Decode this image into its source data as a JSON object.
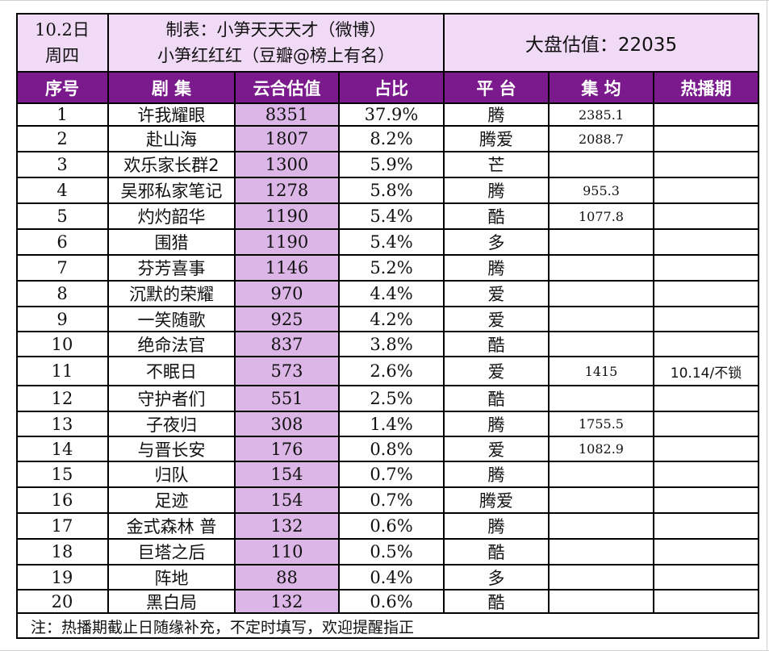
{
  "header": {
    "date": "10.2日",
    "weekday": "周四",
    "credit_line1": "制表：小笋天天天才（微博）",
    "credit_line2": "小笋红红红（豆瓣@榜上有名）",
    "market_estimate": "大盘估值：22035"
  },
  "columns": [
    "序号",
    "剧 集",
    "云合估值",
    "占比",
    "平 台",
    "集 均",
    "热播期"
  ],
  "rows": [
    {
      "rank": "1",
      "title": "许我耀眼",
      "estimate": "8351",
      "share": "37.9%",
      "platform": "腾",
      "per_episode": "2385.1",
      "hot_period": ""
    },
    {
      "rank": "2",
      "title": "赴山海",
      "estimate": "1807",
      "share": "8.2%",
      "platform": "腾爱",
      "per_episode": "2088.7",
      "hot_period": ""
    },
    {
      "rank": "3",
      "title": "欢乐家长群2",
      "estimate": "1300",
      "share": "5.9%",
      "platform": "芒",
      "per_episode": "",
      "hot_period": ""
    },
    {
      "rank": "4",
      "title": "吴邪私家笔记",
      "estimate": "1278",
      "share": "5.8%",
      "platform": "腾",
      "per_episode": "955.3",
      "hot_period": ""
    },
    {
      "rank": "5",
      "title": "灼灼韶华",
      "estimate": "1190",
      "share": "5.4%",
      "platform": "酷",
      "per_episode": "1077.8",
      "hot_period": ""
    },
    {
      "rank": "6",
      "title": "围猎",
      "estimate": "1190",
      "share": "5.4%",
      "platform": "多",
      "per_episode": "",
      "hot_period": ""
    },
    {
      "rank": "7",
      "title": "芬芳喜事",
      "estimate": "1146",
      "share": "5.2%",
      "platform": "腾",
      "per_episode": "",
      "hot_period": ""
    },
    {
      "rank": "8",
      "title": "沉默的荣耀",
      "estimate": "970",
      "share": "4.4%",
      "platform": "爱",
      "per_episode": "",
      "hot_period": ""
    },
    {
      "rank": "9",
      "title": "一笑随歌",
      "estimate": "925",
      "share": "4.2%",
      "platform": "爱",
      "per_episode": "",
      "hot_period": ""
    },
    {
      "rank": "10",
      "title": "绝命法官",
      "estimate": "837",
      "share": "3.8%",
      "platform": "酷",
      "per_episode": "",
      "hot_period": ""
    },
    {
      "rank": "11",
      "title": "不眠日",
      "estimate": "573",
      "share": "2.6%",
      "platform": "爱",
      "per_episode": "1415",
      "hot_period": "10.14/不锁"
    },
    {
      "rank": "12",
      "title": "守护者们",
      "estimate": "551",
      "share": "2.5%",
      "platform": "酷",
      "per_episode": "",
      "hot_period": ""
    },
    {
      "rank": "13",
      "title": "子夜归",
      "estimate": "308",
      "share": "1.4%",
      "platform": "腾",
      "per_episode": "1755.5",
      "hot_period": ""
    },
    {
      "rank": "14",
      "title": "与晋长安",
      "estimate": "176",
      "share": "0.8%",
      "platform": "爱",
      "per_episode": "1082.9",
      "hot_period": ""
    },
    {
      "rank": "15",
      "title": "归队",
      "estimate": "154",
      "share": "0.7%",
      "platform": "腾",
      "per_episode": "",
      "hot_period": ""
    },
    {
      "rank": "16",
      "title": "足迹",
      "estimate": "154",
      "share": "0.7%",
      "platform": "腾爱",
      "per_episode": "",
      "hot_period": ""
    },
    {
      "rank": "17",
      "title": "金式森林 普",
      "estimate": "132",
      "share": "0.6%",
      "platform": "腾",
      "per_episode": "",
      "hot_period": ""
    },
    {
      "rank": "18",
      "title": "巨塔之后",
      "estimate": "110",
      "share": "0.5%",
      "platform": "酷",
      "per_episode": "",
      "hot_period": ""
    },
    {
      "rank": "19",
      "title": "阵地",
      "estimate": "88",
      "share": "0.4%",
      "platform": "多",
      "per_episode": "",
      "hot_period": ""
    },
    {
      "rank": "20",
      "title": "黑白局",
      "estimate": "132",
      "share": "0.6%",
      "platform": "酷",
      "per_episode": "",
      "hot_period": ""
    }
  ],
  "footer_note": "注：热播期截止日随缘补充，不定时填写，欢迎提醒指正",
  "colors": {
    "header_purple": "#7b1a8c",
    "top_fill": "#f1daf6",
    "estimate_fill": "#dcb6e6"
  }
}
